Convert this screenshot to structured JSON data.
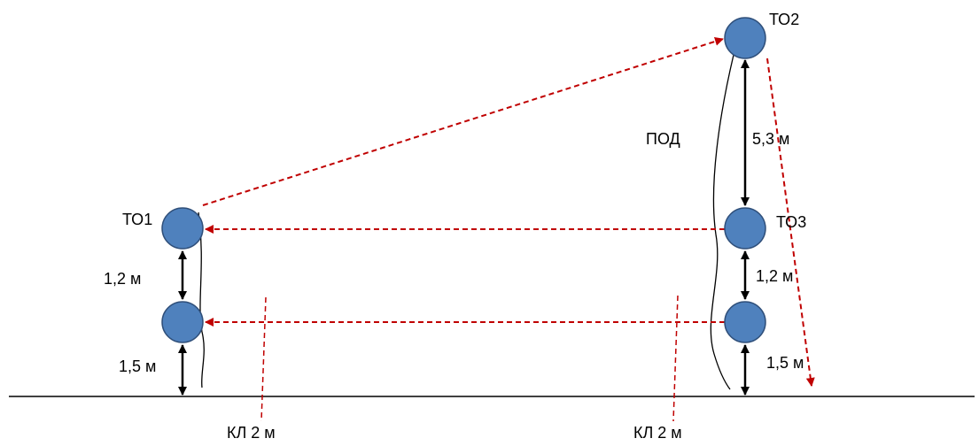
{
  "labels": {
    "to1": "ТО1",
    "to2": "ТО2",
    "to3": "ТО3",
    "pod": "ПОД",
    "left_gap_upper": "1,2 м",
    "left_gap_lower": "1,5 м",
    "right_gap_top": "5,3 м",
    "right_gap_upper": "1,2 м",
    "right_gap_lower": "1,5 м",
    "kl_left": "КЛ 2 м",
    "kl_right": "КЛ 2 м"
  },
  "colors": {
    "node_fill": "#4F81BD",
    "node_stroke": "#2F4F7A",
    "dashed_arrow": "#C00000",
    "line": "#000000",
    "background": "#FFFFFF"
  }
}
